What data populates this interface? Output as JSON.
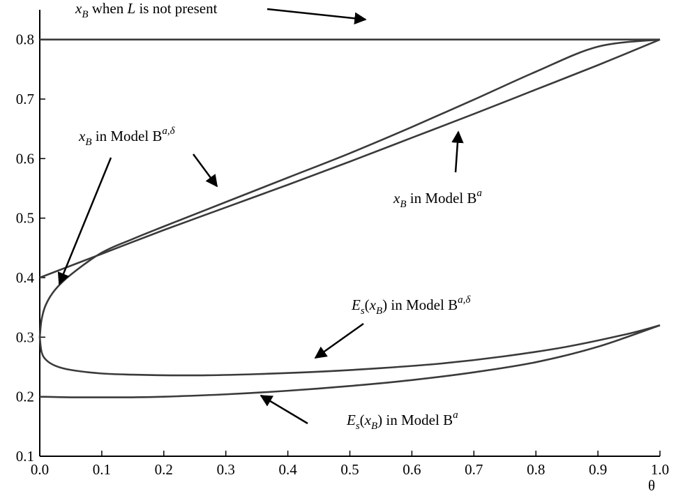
{
  "chart_data": {
    "type": "line",
    "title": "",
    "xlabel": "θ",
    "ylabel": "",
    "xlim": [
      0.0,
      1.0
    ],
    "ylim": [
      0.1,
      0.85
    ],
    "grid": false,
    "legend": "none",
    "x_ticks": [
      "0.0",
      "0.1",
      "0.2",
      "0.3",
      "0.4",
      "0.5",
      "0.6",
      "0.7",
      "0.8",
      "0.9",
      "1.0"
    ],
    "y_ticks": [
      "0.1",
      "0.2",
      "0.3",
      "0.4",
      "0.5",
      "0.6",
      "0.7",
      "0.8"
    ],
    "line_color": "#3a3a3a",
    "series": [
      {
        "x": [
          0.0,
          0.1,
          0.2,
          0.3,
          0.4,
          0.5,
          0.6,
          0.7,
          0.8,
          0.9,
          1.0
        ],
        "y": [
          0.8,
          0.8,
          0.8,
          0.8,
          0.8,
          0.8,
          0.8,
          0.8,
          0.8,
          0.8,
          0.8
        ]
      },
      {
        "x": [
          0.0,
          0.1,
          0.2,
          0.3,
          0.4,
          0.5,
          0.6,
          0.7,
          0.8,
          0.9,
          1.0
        ],
        "y": [
          0.4,
          0.44,
          0.48,
          0.518,
          0.556,
          0.595,
          0.635,
          0.675,
          0.716,
          0.757,
          0.8
        ]
      },
      {
        "x": [
          0.0,
          0.003,
          0.01,
          0.025,
          0.05,
          0.1,
          0.15,
          0.2,
          0.3,
          0.4,
          0.5,
          0.6,
          0.7,
          0.8,
          0.9,
          1.0
        ],
        "y": [
          0.3,
          0.33,
          0.355,
          0.38,
          0.405,
          0.442,
          0.465,
          0.486,
          0.527,
          0.568,
          0.609,
          0.653,
          0.699,
          0.746,
          0.788,
          0.8
        ]
      },
      {
        "x": [
          0.0,
          0.003,
          0.01,
          0.025,
          0.05,
          0.1,
          0.15,
          0.2,
          0.27,
          0.35,
          0.45,
          0.55,
          0.65,
          0.75,
          0.85,
          0.95,
          1.0
        ],
        "y": [
          0.3,
          0.275,
          0.262,
          0.252,
          0.245,
          0.239,
          0.237,
          0.236,
          0.236,
          0.238,
          0.242,
          0.248,
          0.256,
          0.268,
          0.284,
          0.306,
          0.32
        ]
      },
      {
        "x": [
          0.0,
          0.05,
          0.1,
          0.15,
          0.2,
          0.3,
          0.4,
          0.5,
          0.6,
          0.7,
          0.8,
          0.9,
          1.0
        ],
        "y": [
          0.2,
          0.199,
          0.199,
          0.199,
          0.2,
          0.204,
          0.21,
          0.218,
          0.228,
          0.241,
          0.258,
          0.284,
          0.32
        ]
      }
    ],
    "annotations": [
      {
        "id": "no-l",
        "text_parts": [
          [
            "italic",
            "x"
          ],
          [
            "sub-italic",
            "B"
          ],
          [
            "normal",
            " when "
          ],
          [
            "italic",
            "L"
          ],
          [
            "normal",
            " is not present"
          ]
        ]
      },
      {
        "id": "b-a-delta",
        "text_parts": [
          [
            "italic",
            "x"
          ],
          [
            "sub-italic",
            "B"
          ],
          [
            "normal",
            " in Model B"
          ],
          [
            "sup-italic",
            "a,δ"
          ]
        ]
      },
      {
        "id": "b-a",
        "text_parts": [
          [
            "italic",
            "x"
          ],
          [
            "sub-italic",
            "B"
          ],
          [
            "normal",
            " in Model B"
          ],
          [
            "sup-italic",
            "a"
          ]
        ]
      },
      {
        "id": "es-a-delta",
        "text_parts": [
          [
            "italic",
            "E"
          ],
          [
            "sub-italic",
            "s"
          ],
          [
            "normal",
            "("
          ],
          [
            "italic",
            "x"
          ],
          [
            "sub-italic",
            "B"
          ],
          [
            "normal",
            ") in Model B"
          ],
          [
            "sup-italic",
            "a,δ"
          ]
        ]
      },
      {
        "id": "es-a",
        "text_parts": [
          [
            "italic",
            "E"
          ],
          [
            "sub-italic",
            "s"
          ],
          [
            "normal",
            "("
          ],
          [
            "italic",
            "x"
          ],
          [
            "sub-italic",
            "B"
          ],
          [
            "normal",
            ") in Model B"
          ],
          [
            "sup-italic",
            "a"
          ]
        ]
      }
    ]
  }
}
